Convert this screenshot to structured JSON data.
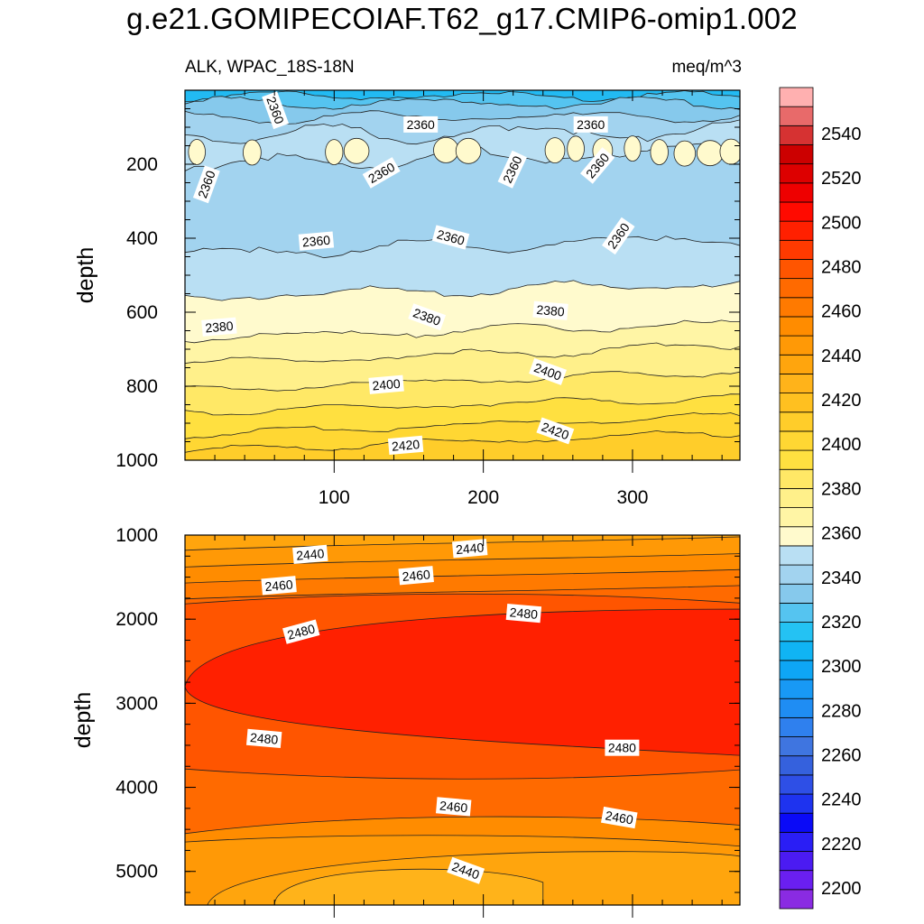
{
  "title": "g.e21.GOMIPECOIAF.T62_g17.CMIP6-omip1.002",
  "subtitle_left": "ALK, WPAC_18S-18N",
  "subtitle_right": "meq/m^3",
  "colors": {
    "contour_line": "#222222",
    "label_bg": "#ffffff"
  },
  "chart_data": [
    {
      "type": "contour",
      "panel": "upper",
      "ylabel": "depth",
      "xlabel": "",
      "xlim": [
        0,
        372
      ],
      "ylim": [
        1000,
        0
      ],
      "x_ticks": [
        100,
        200,
        300
      ],
      "y_ticks": [
        200,
        400,
        600,
        800,
        1000
      ],
      "contour_levels": [
        2360,
        2365,
        2370,
        2375,
        2380,
        2385,
        2390,
        2395,
        2400,
        2405,
        2410,
        2415,
        2420
      ],
      "contour_labels": [
        {
          "text": "2360",
          "x": 60,
          "depth": 55,
          "angle": 70
        },
        {
          "text": "2360",
          "x": 158,
          "depth": 95,
          "angle": 0
        },
        {
          "text": "2360",
          "x": 272,
          "depth": 95,
          "angle": 0
        },
        {
          "text": "2360",
          "x": 15,
          "depth": 255,
          "angle": -70
        },
        {
          "text": "2360",
          "x": 132,
          "depth": 225,
          "angle": -30
        },
        {
          "text": "2360",
          "x": 220,
          "depth": 215,
          "angle": -65
        },
        {
          "text": "2360",
          "x": 277,
          "depth": 205,
          "angle": -50
        },
        {
          "text": "2360",
          "x": 88,
          "depth": 410,
          "angle": -5
        },
        {
          "text": "2360",
          "x": 178,
          "depth": 400,
          "angle": 15
        },
        {
          "text": "2360",
          "x": 291,
          "depth": 395,
          "angle": -55
        },
        {
          "text": "2380",
          "x": 23,
          "depth": 642,
          "angle": -5
        },
        {
          "text": "2380",
          "x": 162,
          "depth": 615,
          "angle": 20
        },
        {
          "text": "2380",
          "x": 245,
          "depth": 598,
          "angle": 5
        },
        {
          "text": "2400",
          "x": 135,
          "depth": 798,
          "angle": -5
        },
        {
          "text": "2400",
          "x": 243,
          "depth": 763,
          "angle": 20
        },
        {
          "text": "2420",
          "x": 148,
          "depth": 962,
          "angle": -5
        },
        {
          "text": "2420",
          "x": 248,
          "depth": 923,
          "angle": 20
        }
      ]
    },
    {
      "type": "contour",
      "panel": "lower",
      "ylabel": "depth",
      "xlabel": "",
      "xlim": [
        0,
        372
      ],
      "ylim": [
        5400,
        1000
      ],
      "y_ticks": [
        1000,
        2000,
        3000,
        4000,
        5000
      ],
      "contour_levels": [
        2440,
        2445,
        2450,
        2455,
        2460,
        2465,
        2470,
        2475,
        2480,
        2485
      ],
      "contour_labels": [
        {
          "text": "2440",
          "x": 84,
          "depth": 1240,
          "angle": -5
        },
        {
          "text": "2440",
          "x": 191,
          "depth": 1170,
          "angle": -5
        },
        {
          "text": "2460",
          "x": 63,
          "depth": 1610,
          "angle": -5
        },
        {
          "text": "2460",
          "x": 155,
          "depth": 1490,
          "angle": -5
        },
        {
          "text": "2480",
          "x": 78,
          "depth": 2160,
          "angle": -15
        },
        {
          "text": "2480",
          "x": 227,
          "depth": 1940,
          "angle": 5
        },
        {
          "text": "2480",
          "x": 53,
          "depth": 3430,
          "angle": 5
        },
        {
          "text": "2480",
          "x": 293,
          "depth": 3540,
          "angle": 0
        },
        {
          "text": "2460",
          "x": 180,
          "depth": 4240,
          "angle": 5
        },
        {
          "text": "2460",
          "x": 291,
          "depth": 4370,
          "angle": 10
        },
        {
          "text": "2440",
          "x": 188,
          "depth": 5000,
          "angle": 20
        }
      ]
    }
  ],
  "colorbar": {
    "tick_labels": [
      "2200",
      "2220",
      "2240",
      "2260",
      "2280",
      "2300",
      "2320",
      "2340",
      "2360",
      "2380",
      "2400",
      "2420",
      "2440",
      "2460",
      "2480",
      "2500",
      "2520",
      "2540"
    ],
    "colors_bottom_to_top": [
      "#8a2be2",
      "#6a1ff0",
      "#4b1bf2",
      "#2a1ef5",
      "#0a0af7",
      "#1e33ef",
      "#2e4fe6",
      "#3561dd",
      "#3f75e0",
      "#2f80ee",
      "#1f8df3",
      "#1899f5",
      "#0ea6f5",
      "#10b4f4",
      "#24c2f3",
      "#55c4f0",
      "#86c9ec",
      "#a2d3ef",
      "#b9dff3",
      "#fffacd",
      "#fff5a5",
      "#fff08a",
      "#ffe866",
      "#ffe040",
      "#ffd733",
      "#ffcd2a",
      "#ffc020",
      "#ffb31a",
      "#ffa50d",
      "#ff9906",
      "#ff8c00",
      "#ff7a00",
      "#ff6a00",
      "#ff5500",
      "#ff3a00",
      "#ff2000",
      "#ff0a00",
      "#ee0000",
      "#dd0000",
      "#cc0000",
      "#d63232",
      "#e86a6a",
      "#ffb0b0"
    ]
  }
}
